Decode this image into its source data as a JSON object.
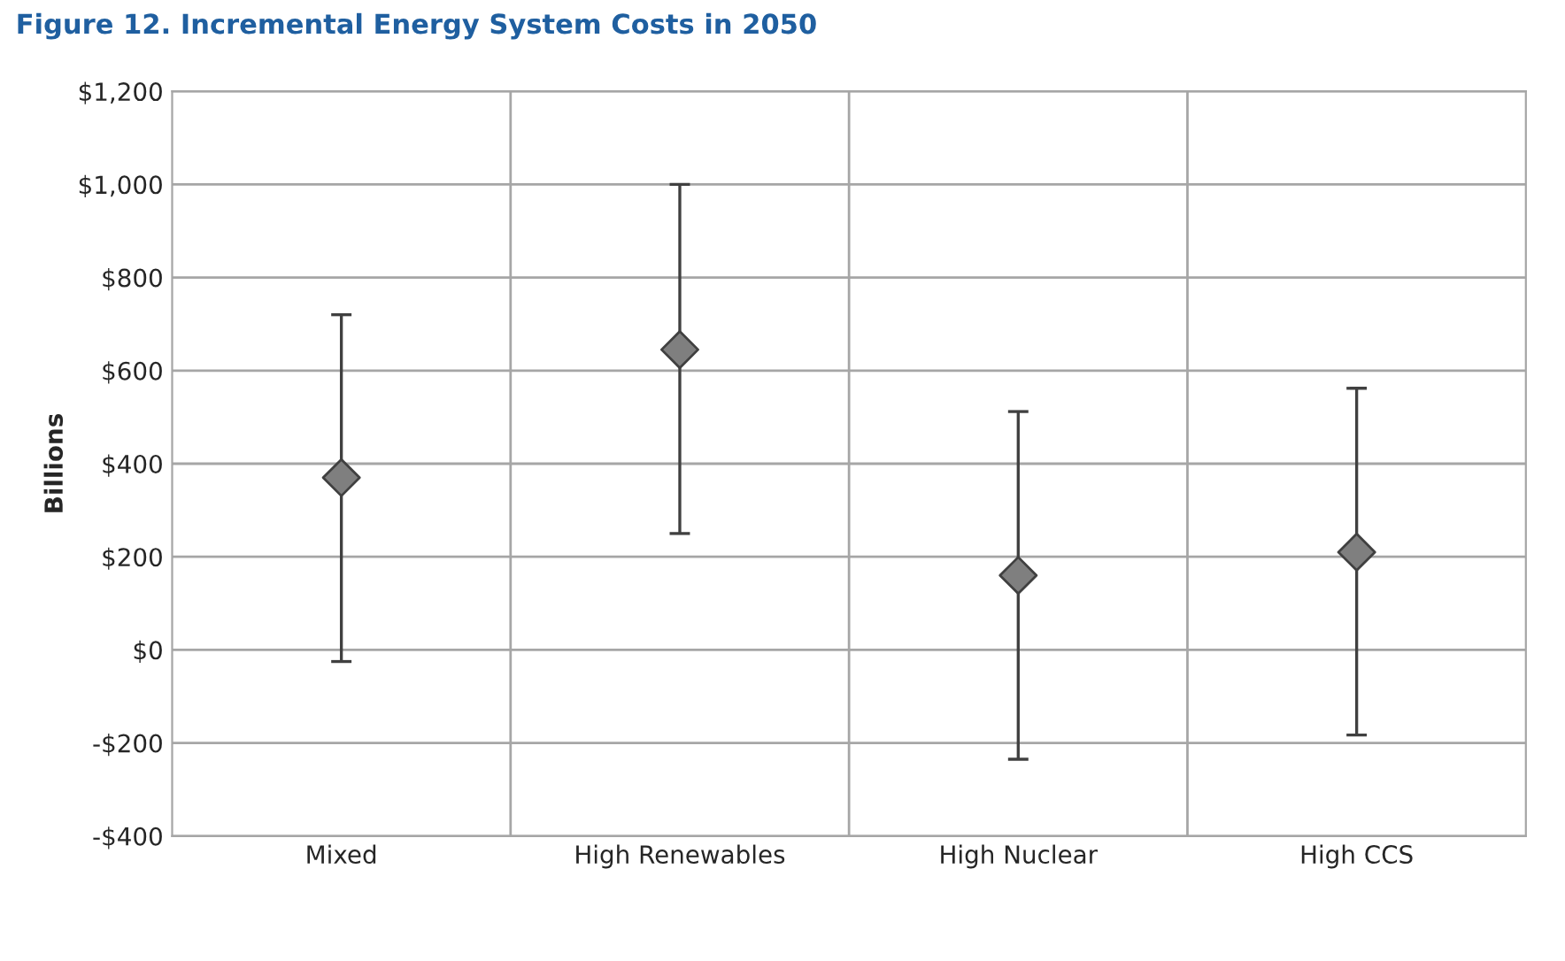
{
  "chart_data": {
    "type": "scatter",
    "title": "Figure 12. Incremental Energy System Costs in 2050",
    "ylabel": "Billions",
    "categories": [
      "Mixed",
      "High Renewables",
      "High Nuclear",
      "High CCS"
    ],
    "series": [
      {
        "color": "#7f7f7f",
        "values": [
          370,
          645,
          160,
          210
        ],
        "errors": [
          [
            -25,
            720
          ],
          [
            250,
            1000
          ],
          [
            -235,
            512
          ],
          [
            -183,
            562
          ]
        ]
      }
    ],
    "ylim": [
      -400,
      1200
    ],
    "yticks": [
      {
        "value": -400,
        "label": "-$400"
      },
      {
        "value": -200,
        "label": "-$200"
      },
      {
        "value": 0,
        "label": "$0"
      },
      {
        "value": 200,
        "label": "$200"
      },
      {
        "value": 400,
        "label": "$400"
      },
      {
        "value": 600,
        "label": "$600"
      },
      {
        "value": 800,
        "label": "$800"
      },
      {
        "value": 1000,
        "label": "$1,000"
      },
      {
        "value": 1200,
        "label": "$1,200"
      }
    ],
    "grid": true,
    "marker": "diamond",
    "legend": false
  }
}
